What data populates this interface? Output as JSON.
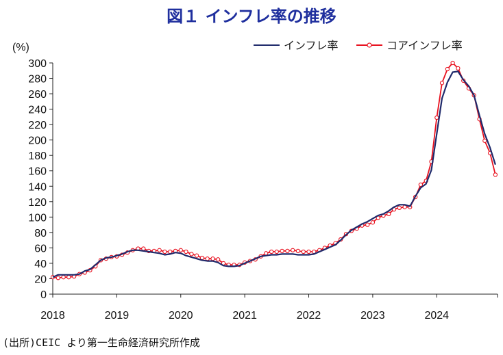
{
  "chart_data": {
    "type": "line",
    "title": "図１ インフレ率の推移",
    "ylabel": "(%)",
    "xlabel": "",
    "ylim": [
      0,
      300
    ],
    "yticks": [
      0,
      20,
      40,
      60,
      80,
      100,
      120,
      140,
      160,
      180,
      200,
      220,
      240,
      260,
      280,
      300
    ],
    "xlim": [
      2018.0,
      2024.95
    ],
    "xticks": [
      "2018",
      "2019",
      "2020",
      "2021",
      "2022",
      "2023",
      "2024"
    ],
    "legend_position": "top-right",
    "grid": false,
    "series": [
      {
        "name": "インフレ率",
        "color": "#1f2a6b",
        "marker": "none",
        "x": [
          2018.0,
          2018.083,
          2018.167,
          2018.25,
          2018.333,
          2018.417,
          2018.5,
          2018.583,
          2018.667,
          2018.75,
          2018.833,
          2018.917,
          2019.0,
          2019.083,
          2019.167,
          2019.25,
          2019.333,
          2019.417,
          2019.5,
          2019.583,
          2019.667,
          2019.75,
          2019.833,
          2019.917,
          2020.0,
          2020.083,
          2020.167,
          2020.25,
          2020.333,
          2020.417,
          2020.5,
          2020.583,
          2020.667,
          2020.75,
          2020.833,
          2020.917,
          2021.0,
          2021.083,
          2021.167,
          2021.25,
          2021.333,
          2021.417,
          2021.5,
          2021.583,
          2021.667,
          2021.75,
          2021.833,
          2021.917,
          2022.0,
          2022.083,
          2022.167,
          2022.25,
          2022.333,
          2022.417,
          2022.5,
          2022.583,
          2022.667,
          2022.75,
          2022.833,
          2022.917,
          2023.0,
          2023.083,
          2023.167,
          2023.25,
          2023.333,
          2023.417,
          2023.5,
          2023.583,
          2023.667,
          2023.75,
          2023.833,
          2023.917,
          2024.0,
          2024.083,
          2024.167,
          2024.25,
          2024.333,
          2024.417,
          2024.5,
          2024.583,
          2024.667,
          2024.75,
          2024.833,
          2024.917
        ],
        "values": [
          22,
          25,
          25,
          25,
          25,
          26,
          30,
          32,
          38,
          44,
          47,
          48,
          50,
          52,
          55,
          57,
          57,
          56,
          55,
          54,
          53,
          51,
          52,
          54,
          53,
          50,
          48,
          46,
          44,
          43,
          43,
          41,
          37,
          36,
          36,
          37,
          40,
          43,
          46,
          49,
          50,
          51,
          51,
          52,
          52,
          52,
          51,
          51,
          51,
          52,
          55,
          58,
          61,
          64,
          70,
          77,
          83,
          87,
          91,
          94,
          98,
          102,
          104,
          108,
          113,
          116,
          116,
          114,
          127,
          138,
          143,
          161,
          208,
          254,
          275,
          288,
          289,
          278,
          270,
          258,
          232,
          208,
          190,
          168
        ]
      },
      {
        "name": "コアインフレ率",
        "color": "#e8101e",
        "marker": "open-circle",
        "x": [
          2018.0,
          2018.083,
          2018.167,
          2018.25,
          2018.333,
          2018.417,
          2018.5,
          2018.583,
          2018.667,
          2018.75,
          2018.833,
          2018.917,
          2019.0,
          2019.083,
          2019.167,
          2019.25,
          2019.333,
          2019.417,
          2019.5,
          2019.583,
          2019.667,
          2019.75,
          2019.833,
          2019.917,
          2020.0,
          2020.083,
          2020.167,
          2020.25,
          2020.333,
          2020.417,
          2020.5,
          2020.583,
          2020.667,
          2020.75,
          2020.833,
          2020.917,
          2021.0,
          2021.083,
          2021.167,
          2021.25,
          2021.333,
          2021.417,
          2021.5,
          2021.583,
          2021.667,
          2021.75,
          2021.833,
          2021.917,
          2022.0,
          2022.083,
          2022.167,
          2022.25,
          2022.333,
          2022.417,
          2022.5,
          2022.583,
          2022.667,
          2022.75,
          2022.833,
          2022.917,
          2023.0,
          2023.083,
          2023.167,
          2023.25,
          2023.333,
          2023.417,
          2023.5,
          2023.583,
          2023.667,
          2023.75,
          2023.833,
          2023.917,
          2024.0,
          2024.083,
          2024.167,
          2024.25,
          2024.333,
          2024.417,
          2024.5,
          2024.583,
          2024.667,
          2024.75,
          2024.833,
          2024.917
        ],
        "values": [
          22,
          21,
          22,
          22,
          23,
          26,
          28,
          31,
          36,
          44,
          46,
          48,
          49,
          51,
          54,
          57,
          59,
          59,
          56,
          56,
          57,
          55,
          55,
          56,
          57,
          55,
          52,
          50,
          47,
          46,
          46,
          45,
          40,
          38,
          38,
          38,
          41,
          43,
          45,
          49,
          53,
          55,
          55,
          56,
          56,
          57,
          56,
          55,
          55,
          55,
          57,
          60,
          63,
          66,
          71,
          78,
          82,
          85,
          89,
          90,
          93,
          99,
          102,
          104,
          110,
          112,
          113,
          113,
          126,
          142,
          147,
          172,
          229,
          274,
          292,
          300,
          293,
          277,
          267,
          258,
          227,
          199,
          183,
          155
        ]
      }
    ]
  },
  "source_note": "(出所)CEIC より第一生命経済研究所作成"
}
